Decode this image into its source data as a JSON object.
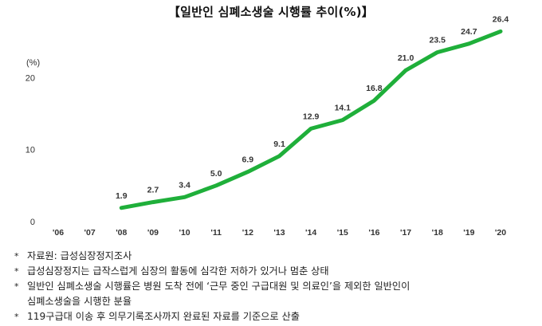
{
  "chart_data": {
    "type": "line",
    "title": "【일반인 심폐소생술 시행률 추이(%)】",
    "ylabel": "(%)",
    "xlabel": "",
    "categories": [
      "'06",
      "'07",
      "'08",
      "'09",
      "'10",
      "'11",
      "'12",
      "'13",
      "'14",
      "'15",
      "'16",
      "'17",
      "'18",
      "'19",
      "'20"
    ],
    "series": [
      {
        "values": [
          null,
          null,
          1.9,
          2.7,
          3.4,
          5.0,
          6.9,
          9.1,
          12.9,
          14.1,
          16.8,
          21.0,
          23.5,
          24.7,
          26.4
        ]
      }
    ],
    "data_labels": [
      null,
      null,
      "1.9",
      "2.7",
      "3.4",
      "5.0",
      "6.9",
      "9.1",
      "12.9",
      "14.1",
      "16.8",
      "21.0",
      "23.5",
      "24.7",
      "26.4"
    ],
    "y_ticks": [
      "0",
      "10",
      "20"
    ],
    "ylim": [
      0,
      27
    ],
    "grid": false,
    "line_color": "#1faf3a"
  },
  "notes": [
    {
      "bullet": "*",
      "text": "자료원: 급성심장정지조사"
    },
    {
      "bullet": "*",
      "text": "급성심장정지는 급작스럽게 심장의 활동에 심각한 저하가 있거나 멈춘 상태"
    },
    {
      "bullet": "*",
      "text": "일반인 심폐소생술 시행률은 병원 도착 전에 ‘근무 중인 구급대원 및 의료인’을 제외한 일반인이"
    },
    {
      "bullet": "",
      "text": "심폐소생술을 시행한 분율"
    },
    {
      "bullet": "*",
      "text": "119구급대 이송 후 의무기록조사까지 완료된 자료를 기준으로 산출"
    }
  ]
}
